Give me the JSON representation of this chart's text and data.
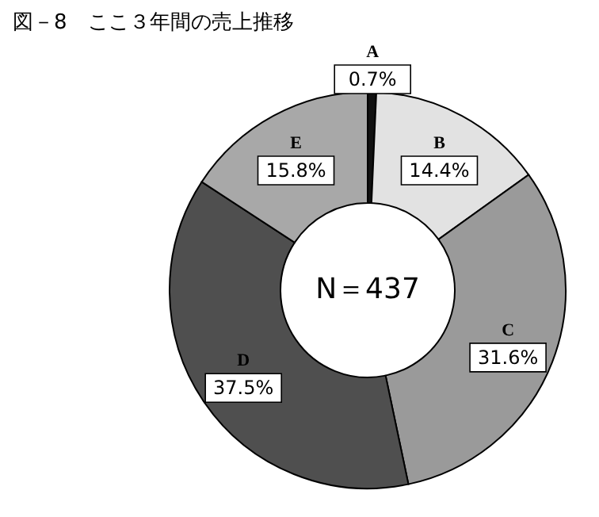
{
  "chart_data": {
    "type": "donut",
    "title": "図－8　ここ３年間の売上推移",
    "categories": [
      "A",
      "B",
      "C",
      "D",
      "E"
    ],
    "values": [
      0.7,
      14.4,
      31.6,
      37.5,
      15.8
    ],
    "value_labels": [
      "0.7%",
      "14.4%",
      "31.6%",
      "37.5%",
      "15.8%"
    ],
    "colors": [
      "#111111",
      "#e2e2e2",
      "#9a9a9a",
      "#4f4f4f",
      "#a8a8a8"
    ],
    "annotations": [
      "N＝437"
    ]
  }
}
